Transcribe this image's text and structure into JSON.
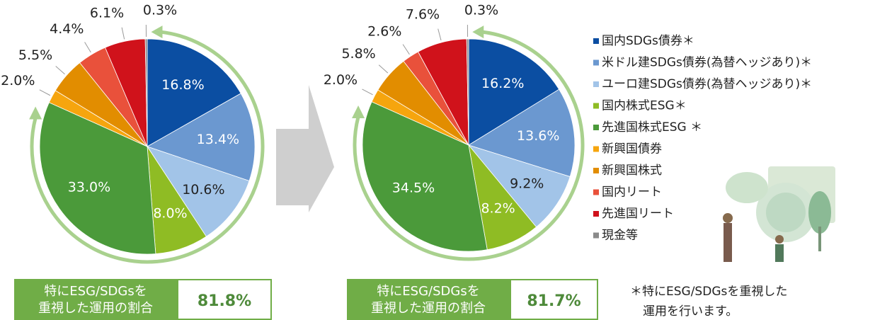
{
  "chart_data": [
    {
      "type": "pie",
      "categories": [
        "国内SDGs債券＊",
        "米ドル建SDGs債券(為替ヘッジあり)＊",
        "ユーロ建SDGs債券(為替ヘッジあり)＊",
        "国内株式ESG＊",
        "先進国株式ESG ＊",
        "新興国債券",
        "新興国株式",
        "国内リート",
        "先進国リート",
        "現金等"
      ],
      "values": [
        16.8,
        13.4,
        10.6,
        8.0,
        33.0,
        2.0,
        5.5,
        4.4,
        6.1,
        0.3
      ],
      "value_labels": [
        "16.8%",
        "13.4%",
        "10.6%",
        "8.0%",
        "33.0%",
        "2.0%",
        "5.5%",
        "4.4%",
        "6.1%",
        "0.3%"
      ],
      "colors": [
        "#0b4ea2",
        "#6b98d0",
        "#a2c4e8",
        "#8fbc24",
        "#4b9a3a",
        "#f6a50e",
        "#e28d00",
        "#e9513b",
        "#d0121b",
        "#8a8a8a"
      ],
      "label_colors": [
        "#ffffff",
        "#ffffff",
        "#222222",
        "#ffffff",
        "#ffffff",
        "#222222",
        "#222222",
        "#222222",
        "#222222",
        "#222222"
      ],
      "summary_label": [
        "特にESG/SDGsを",
        "重視した運用の割合"
      ],
      "summary_value": "81.8%"
    },
    {
      "type": "pie",
      "categories": [
        "国内SDGs債券＊",
        "米ドル建SDGs債券(為替ヘッジあり)＊",
        "ユーロ建SDGs債券(為替ヘッジあり)＊",
        "国内株式ESG＊",
        "先進国株式ESG ＊",
        "新興国債券",
        "新興国株式",
        "国内リート",
        "先進国リート",
        "現金等"
      ],
      "values": [
        16.2,
        13.6,
        9.2,
        8.2,
        34.5,
        2.0,
        5.8,
        2.6,
        7.6,
        0.3
      ],
      "value_labels": [
        "16.2%",
        "13.6%",
        "9.2%",
        "8.2%",
        "34.5%",
        "2.0%",
        "5.8%",
        "2.6%",
        "7.6%",
        "0.3%"
      ],
      "colors": [
        "#0b4ea2",
        "#6b98d0",
        "#a2c4e8",
        "#8fbc24",
        "#4b9a3a",
        "#f6a50e",
        "#e28d00",
        "#e9513b",
        "#d0121b",
        "#8a8a8a"
      ],
      "label_colors": [
        "#ffffff",
        "#ffffff",
        "#222222",
        "#ffffff",
        "#ffffff",
        "#222222",
        "#222222",
        "#222222",
        "#222222",
        "#222222"
      ],
      "summary_label": [
        "特にESG/SDGsを",
        "重視した運用の割合"
      ],
      "summary_value": "81.7%"
    }
  ],
  "footnote": [
    "＊特にESG/SDGsを重視した",
    "運用を行います。"
  ]
}
